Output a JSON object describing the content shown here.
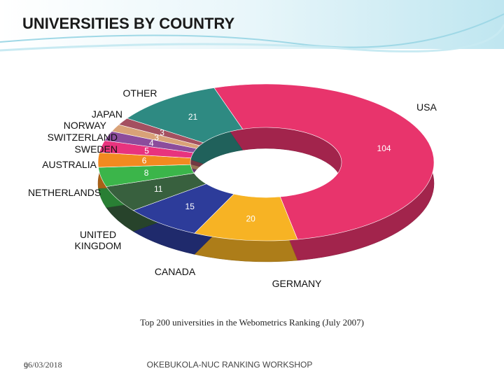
{
  "chart_data": {
    "type": "donut",
    "title": "UNIVERSITIES BY COUNTRY",
    "caption": "Top 200 universities in the Webometrics Ranking (July 2007)",
    "categories": [
      "USA",
      "GERMANY",
      "CANADA",
      "UNITED KINGDOM",
      "NETHERLANDS",
      "AUSTRALIA",
      "SWEDEN",
      "SWITZERLAND",
      "NORWAY",
      "JAPAN",
      "OTHER"
    ],
    "values": [
      104,
      20,
      15,
      11,
      8,
      6,
      5,
      4,
      3,
      3,
      21
    ],
    "colors": [
      "#e8346c",
      "#f7b324",
      "#2d3c9a",
      "#38603e",
      "#3bb54a",
      "#f28a20",
      "#e8337e",
      "#8c4c9c",
      "#d9a278",
      "#a45060",
      "#2e8a82"
    ]
  },
  "slide": {
    "date": "06/03/2018",
    "number": "9",
    "footer": "OKEBUKOLA-NUC RANKING WORKSHOP"
  }
}
